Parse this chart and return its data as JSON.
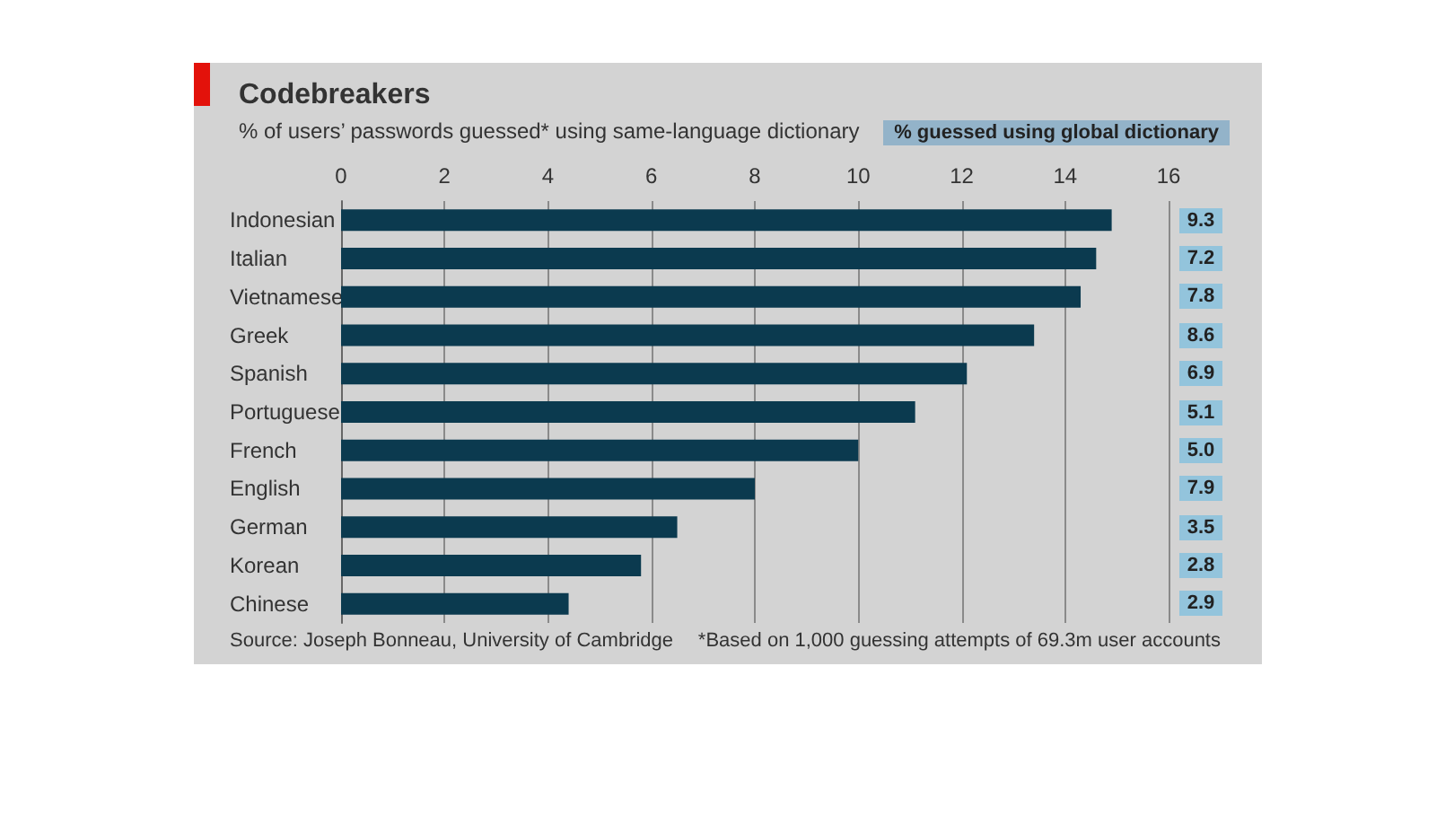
{
  "chart_data": [
    {
      "type": "bar",
      "orientation": "horizontal",
      "title": "Codebreakers",
      "subtitle": "% of users’ passwords guessed* using same-language dictionary",
      "categories": [
        "Indonesian",
        "Italian",
        "Vietnamese",
        "Greek",
        "Spanish",
        "Portuguese",
        "French",
        "English",
        "German",
        "Korean",
        "Chinese"
      ],
      "series": [
        {
          "color": "#0b3a4f",
          "values": [
            14.9,
            14.6,
            14.3,
            13.4,
            12.1,
            11.1,
            10.0,
            8.0,
            6.5,
            5.8,
            4.4
          ]
        }
      ],
      "xlim": [
        0,
        16
      ],
      "xticks": [
        0,
        2,
        4,
        6,
        8,
        10,
        12,
        14,
        16
      ],
      "grid": "x",
      "annotations": [
        "Source: Joseph Bonneau, University of Cambridge",
        "*Based on 1,000 guessing attempts of 69.3m user accounts"
      ]
    },
    {
      "type": "other",
      "title": "% guessed using global dictionary",
      "color": "#93c4dc",
      "value_labels": [
        "9.3",
        "7.2",
        "7.8",
        "8.6",
        "6.9",
        "5.1",
        "5.0",
        "7.9",
        "3.5",
        "2.8",
        "2.9"
      ]
    }
  ]
}
